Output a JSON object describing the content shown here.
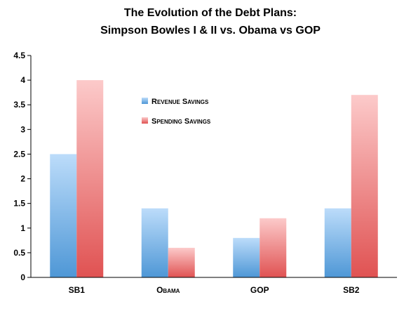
{
  "chart_data": {
    "type": "bar",
    "title": [
      "The Evolution of the Debt Plans:",
      "Simpson Bowles I & II vs. Obama vs GOP"
    ],
    "categories": [
      "SB1",
      "Obama",
      "GOP",
      "SB2"
    ],
    "series": [
      {
        "name": "Revenue Savings",
        "values": [
          2.5,
          1.4,
          0.8,
          1.4
        ],
        "color_top": "#bcdcfa",
        "color_bottom": "#4e97d6"
      },
      {
        "name": "Spending Savings",
        "values": [
          4.0,
          0.6,
          1.2,
          3.7
        ],
        "color_top": "#fccaca",
        "color_bottom": "#e05252"
      }
    ],
    "yticks": [
      "0",
      "0.5",
      "1",
      "1.5",
      "2",
      "2.5",
      "3",
      "3.5",
      "4",
      "4.5"
    ],
    "ylim": [
      0,
      4.5
    ],
    "grid": false,
    "legend_position": "center-left"
  }
}
